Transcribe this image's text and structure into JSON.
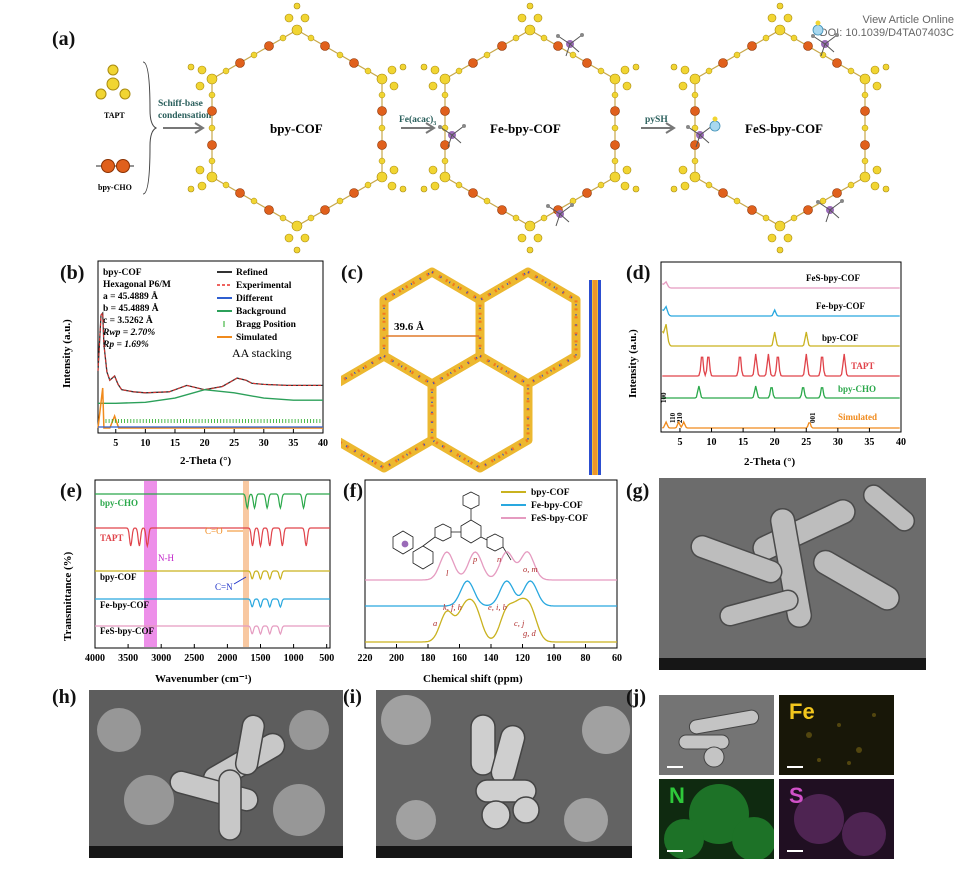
{
  "header": {
    "line1": "View Article Online",
    "line2": "DOI: 10.1039/D4TA07403C"
  },
  "panel_labels": {
    "a": "(a)",
    "b": "(b)",
    "c": "(c)",
    "d": "(d)",
    "e": "(e)",
    "f": "(f)",
    "g": "(g)",
    "h": "(h)",
    "i": "(i)",
    "j": "(j)"
  },
  "scheme": {
    "tapt": "TAPT",
    "bpycho": "bpy-CHO",
    "step1": [
      "Schiff-base",
      "condensation"
    ],
    "step2": "Fe(acac)",
    "step2_sub": "3",
    "step3": "pySH",
    "cof1": "bpy-COF",
    "cof2": "Fe-bpy-COF",
    "cof3": "FeS-bpy-COF"
  },
  "panel_b": {
    "info": [
      "bpy-COF",
      "Hexagonal P6/M",
      "a = 45.4889 Å",
      "b = 45.4889 Å",
      "c = 3.5262 Å",
      "Rwp = 2.70%",
      "Rp = 1.69%"
    ],
    "legend": [
      "Refined",
      "Experimental",
      "Different",
      "Background",
      "Bragg Position",
      "Simulated"
    ],
    "annotation": "AA stacking",
    "ylabel": "Intensity (a.u.)",
    "xlabel": "2-Theta (°)",
    "xticks": [
      "5",
      "10",
      "15",
      "20",
      "25",
      "30",
      "35",
      "40"
    ]
  },
  "panel_c": {
    "pore": "39.6 Å"
  },
  "panel_d": {
    "series": [
      "FeS-bpy-COF",
      "Fe-bpy-COF",
      "bpy-COF",
      "TAPT",
      "bpy-CHO",
      "Simulated"
    ],
    "peaks": [
      "100",
      "110",
      "210",
      "001"
    ],
    "ylabel": "Intensity (a.u.)",
    "xlabel": "2-Theta (°)",
    "xticks": [
      "5",
      "10",
      "15",
      "20",
      "25",
      "30",
      "35",
      "40"
    ]
  },
  "panel_e": {
    "series": [
      "bpy-CHO",
      "TAPT",
      "bpy-COF",
      "Fe-bpy-COF",
      "FeS-bpy-COF"
    ],
    "annotations": {
      "co": "C=O",
      "nh": "N-H",
      "cn": "C=N"
    },
    "ylabel": "Transmittance (%)",
    "xlabel": "Wavenumber (cm⁻¹)",
    "xticks": [
      "4000",
      "3500",
      "3000",
      "2500",
      "2000",
      "1500",
      "1000",
      "500"
    ]
  },
  "panel_f": {
    "legend": [
      "bpy-COF",
      "Fe-bpy-COF",
      "FeS-bpy-COF"
    ],
    "peak_labels": [
      "a",
      "k, f, h",
      "e, i, b",
      "c, j",
      "g, d",
      "l",
      "p",
      "n",
      "o, m"
    ],
    "xlabel": "Chemical shift (ppm)",
    "xticks": [
      "220",
      "200",
      "180",
      "160",
      "140",
      "120",
      "100",
      "80",
      "60"
    ]
  },
  "panel_j": {
    "maps": [
      "Fe",
      "N",
      "S"
    ]
  },
  "colors": {
    "refined": "#333333",
    "experimental": "#e8302c",
    "different": "#2f5fd0",
    "background": "#2ca05a",
    "bragg": "#22aa22",
    "simulated": "#f08a1c",
    "fes": "#e59bc0",
    "fe": "#29a8df",
    "bpycof": "#c9b21f",
    "tapt": "#e0434a",
    "bpycho": "#2aa84a",
    "magenta_band": "#e55fe0",
    "orange_band": "#f4a462",
    "benzene_yellow": "#f1d532",
    "bipyridine_orange": "#e0601c"
  },
  "chart_data": [
    {
      "type": "line",
      "title": "",
      "xlabel": "2-Theta (°)",
      "ylabel": "Intensity (a.u.)",
      "xlim": [
        2,
        40
      ],
      "series": [
        {
          "name": "Experimental",
          "x": [
            2,
            2.5,
            2.8,
            3,
            3.5,
            4,
            4.8,
            5.4,
            6,
            8,
            10,
            14,
            17,
            20,
            23,
            25.5,
            27,
            28,
            30,
            34,
            40
          ],
          "y": [
            45,
            98,
            100,
            70,
            44,
            36,
            40,
            32,
            27,
            25,
            24,
            25,
            31,
            27,
            30,
            38,
            36,
            33,
            32,
            31,
            31
          ]
        },
        {
          "name": "Background",
          "x": [
            2,
            5,
            10,
            15,
            20,
            25,
            30,
            35,
            40
          ],
          "y": [
            14,
            14,
            15,
            19,
            27,
            24,
            19,
            17,
            17
          ]
        },
        {
          "name": "Simulated",
          "x": [
            2,
            2.8,
            3,
            4,
            4.8,
            5.5,
            40
          ],
          "y": [
            0,
            40,
            0,
            0,
            12,
            0,
            0
          ]
        }
      ]
    },
    {
      "type": "line",
      "xlabel": "2-Theta (°)",
      "ylabel": "Intensity (a.u.)",
      "xlim": [
        2,
        40
      ],
      "series": [
        {
          "name": "FeS-bpy-COF",
          "peaks_2theta": [
            2.8
          ]
        },
        {
          "name": "Fe-bpy-COF",
          "peaks_2theta": [
            2.8,
            20
          ]
        },
        {
          "name": "bpy-COF",
          "peaks_2theta": [
            2.8,
            20,
            25
          ]
        },
        {
          "name": "TAPT",
          "peaks_2theta": [
            8.5,
            9.5,
            14.5,
            17,
            19,
            20.5,
            25,
            27.5,
            31
          ]
        },
        {
          "name": "bpy-CHO",
          "peaks_2theta": [
            8,
            17,
            19.5,
            24.5,
            27.5
          ]
        },
        {
          "name": "Simulated",
          "peaks_2theta": [
            2.8,
            4.8,
            5.6,
            25.5
          ]
        }
      ]
    },
    {
      "type": "line",
      "xlabel": "Wavenumber (cm-1)",
      "ylabel": "Transmittance (%)",
      "xlim": [
        4000,
        450
      ],
      "series": [
        {
          "name": "bpy-CHO",
          "bands_cm-1": [
            1700,
            1590,
            1400,
            1200,
            850
          ]
        },
        {
          "name": "TAPT",
          "bands_cm-1": [
            3460,
            3330,
            3210,
            1620,
            1500,
            1360,
            1170,
            810
          ]
        },
        {
          "name": "bpy-COF",
          "bands_cm-1": [
            1625,
            1500,
            1360,
            1200
          ]
        },
        {
          "name": "Fe-bpy-COF",
          "bands_cm-1": [
            1625,
            1500,
            1360,
            1200
          ]
        },
        {
          "name": "FeS-bpy-COF",
          "bands_cm-1": [
            1625,
            1500,
            1360,
            1200
          ]
        }
      ]
    },
    {
      "type": "line",
      "xlabel": "Chemical shift (ppm)",
      "xlim": [
        220,
        60
      ],
      "series": [
        {
          "name": "bpy-COF",
          "peaks_ppm": [
            168,
            157,
            150,
            130,
            122,
            115
          ]
        },
        {
          "name": "Fe-bpy-COF",
          "peaks_ppm": [
            155,
            130,
            115
          ]
        },
        {
          "name": "FeS-bpy-COF",
          "peaks_ppm": [
            168,
            150,
            130,
            117
          ]
        }
      ]
    }
  ]
}
